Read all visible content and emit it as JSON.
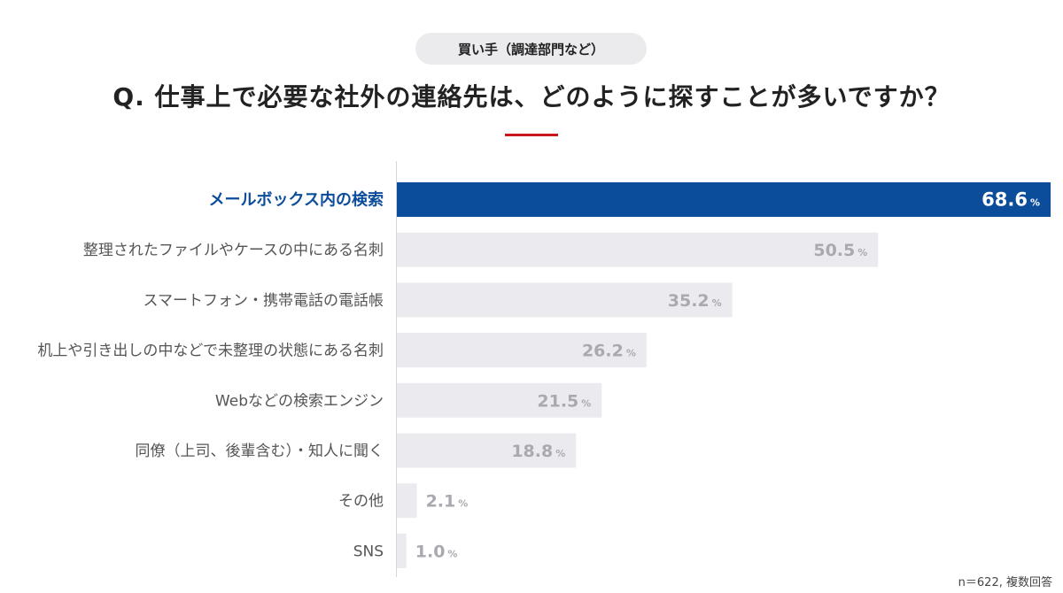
{
  "badge": "買い手（調達部門など）",
  "question": "Q. 仕事上で必要な社外の連絡先は、どのように探すことが多いですか？",
  "note": "n＝622, 複数回答",
  "colors": {
    "highlight_bar": "#0b4d9a",
    "highlight_label": "#0b4d9a",
    "bar": "#ebebef",
    "label": "#555555",
    "value": "#a9a9b0",
    "accent_rule": "#c8161d"
  },
  "chart_data": {
    "type": "bar",
    "orientation": "horizontal",
    "unit": "%",
    "xlim": [
      0,
      68.6
    ],
    "categories": [
      "メールボックス内の検索",
      "整理されたファイルやケースの中にある名刺",
      "スマートフォン・携帯電話の電話帳",
      "机上や引き出しの中などで未整理の状態にある名刺",
      "Webなどの検索エンジン",
      "同僚（上司、後輩含む）・知人に聞く",
      "その他",
      "SNS"
    ],
    "values": [
      68.6,
      50.5,
      35.2,
      26.2,
      21.5,
      18.8,
      2.1,
      1.0
    ],
    "value_labels": [
      "68.6",
      "50.5",
      "35.2",
      "26.2",
      "21.5",
      "18.8",
      "2.1",
      "1.0"
    ],
    "highlight_index": 0
  }
}
